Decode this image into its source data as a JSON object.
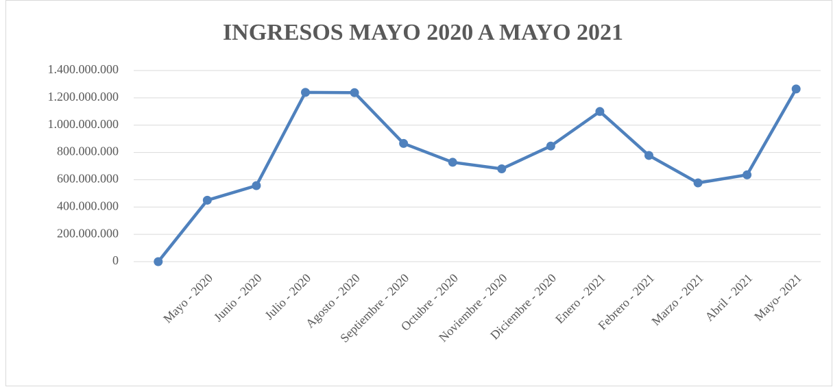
{
  "chart_data": {
    "type": "line",
    "title": "INGRESOS MAYO 2020 A MAYO 2021",
    "categories": [
      null,
      "Mayo - 2020",
      "Junio - 2020",
      "Julio - 2020",
      "Agosto - 2020",
      "Septiembre - 2020",
      "Octubre - 2020",
      "Noviembre - 2020",
      "Diciembre - 2020",
      "Enero - 2021",
      "Febrero - 2021",
      "Marzo - 2021",
      "Abril - 2021",
      "Mayo- 2021"
    ],
    "series": [
      {
        "name": "Ingresos",
        "color": "#4f81bd",
        "values": [
          0,
          450000000,
          557000000,
          1240000000,
          1238000000,
          866000000,
          728000000,
          680000000,
          847000000,
          1100000000,
          778000000,
          577000000,
          636000000,
          1265000000
        ]
      }
    ],
    "ylim": [
      0,
      1400000000
    ],
    "yticks": [
      0,
      {
        "value": 200000000,
        "label": "200.000.000"
      },
      {
        "value": 400000000,
        "label": "400.000.000"
      },
      {
        "value": 600000000,
        "label": "600.000.000"
      },
      {
        "value": 800000000,
        "label": "800.000.000"
      },
      {
        "value": 1000000000,
        "label": "1.000.000.000"
      },
      {
        "value": 1200000000,
        "label": "1.200.000.000"
      },
      {
        "value": 1400000000,
        "label": "1.400.000.000"
      }
    ],
    "grid": true
  }
}
